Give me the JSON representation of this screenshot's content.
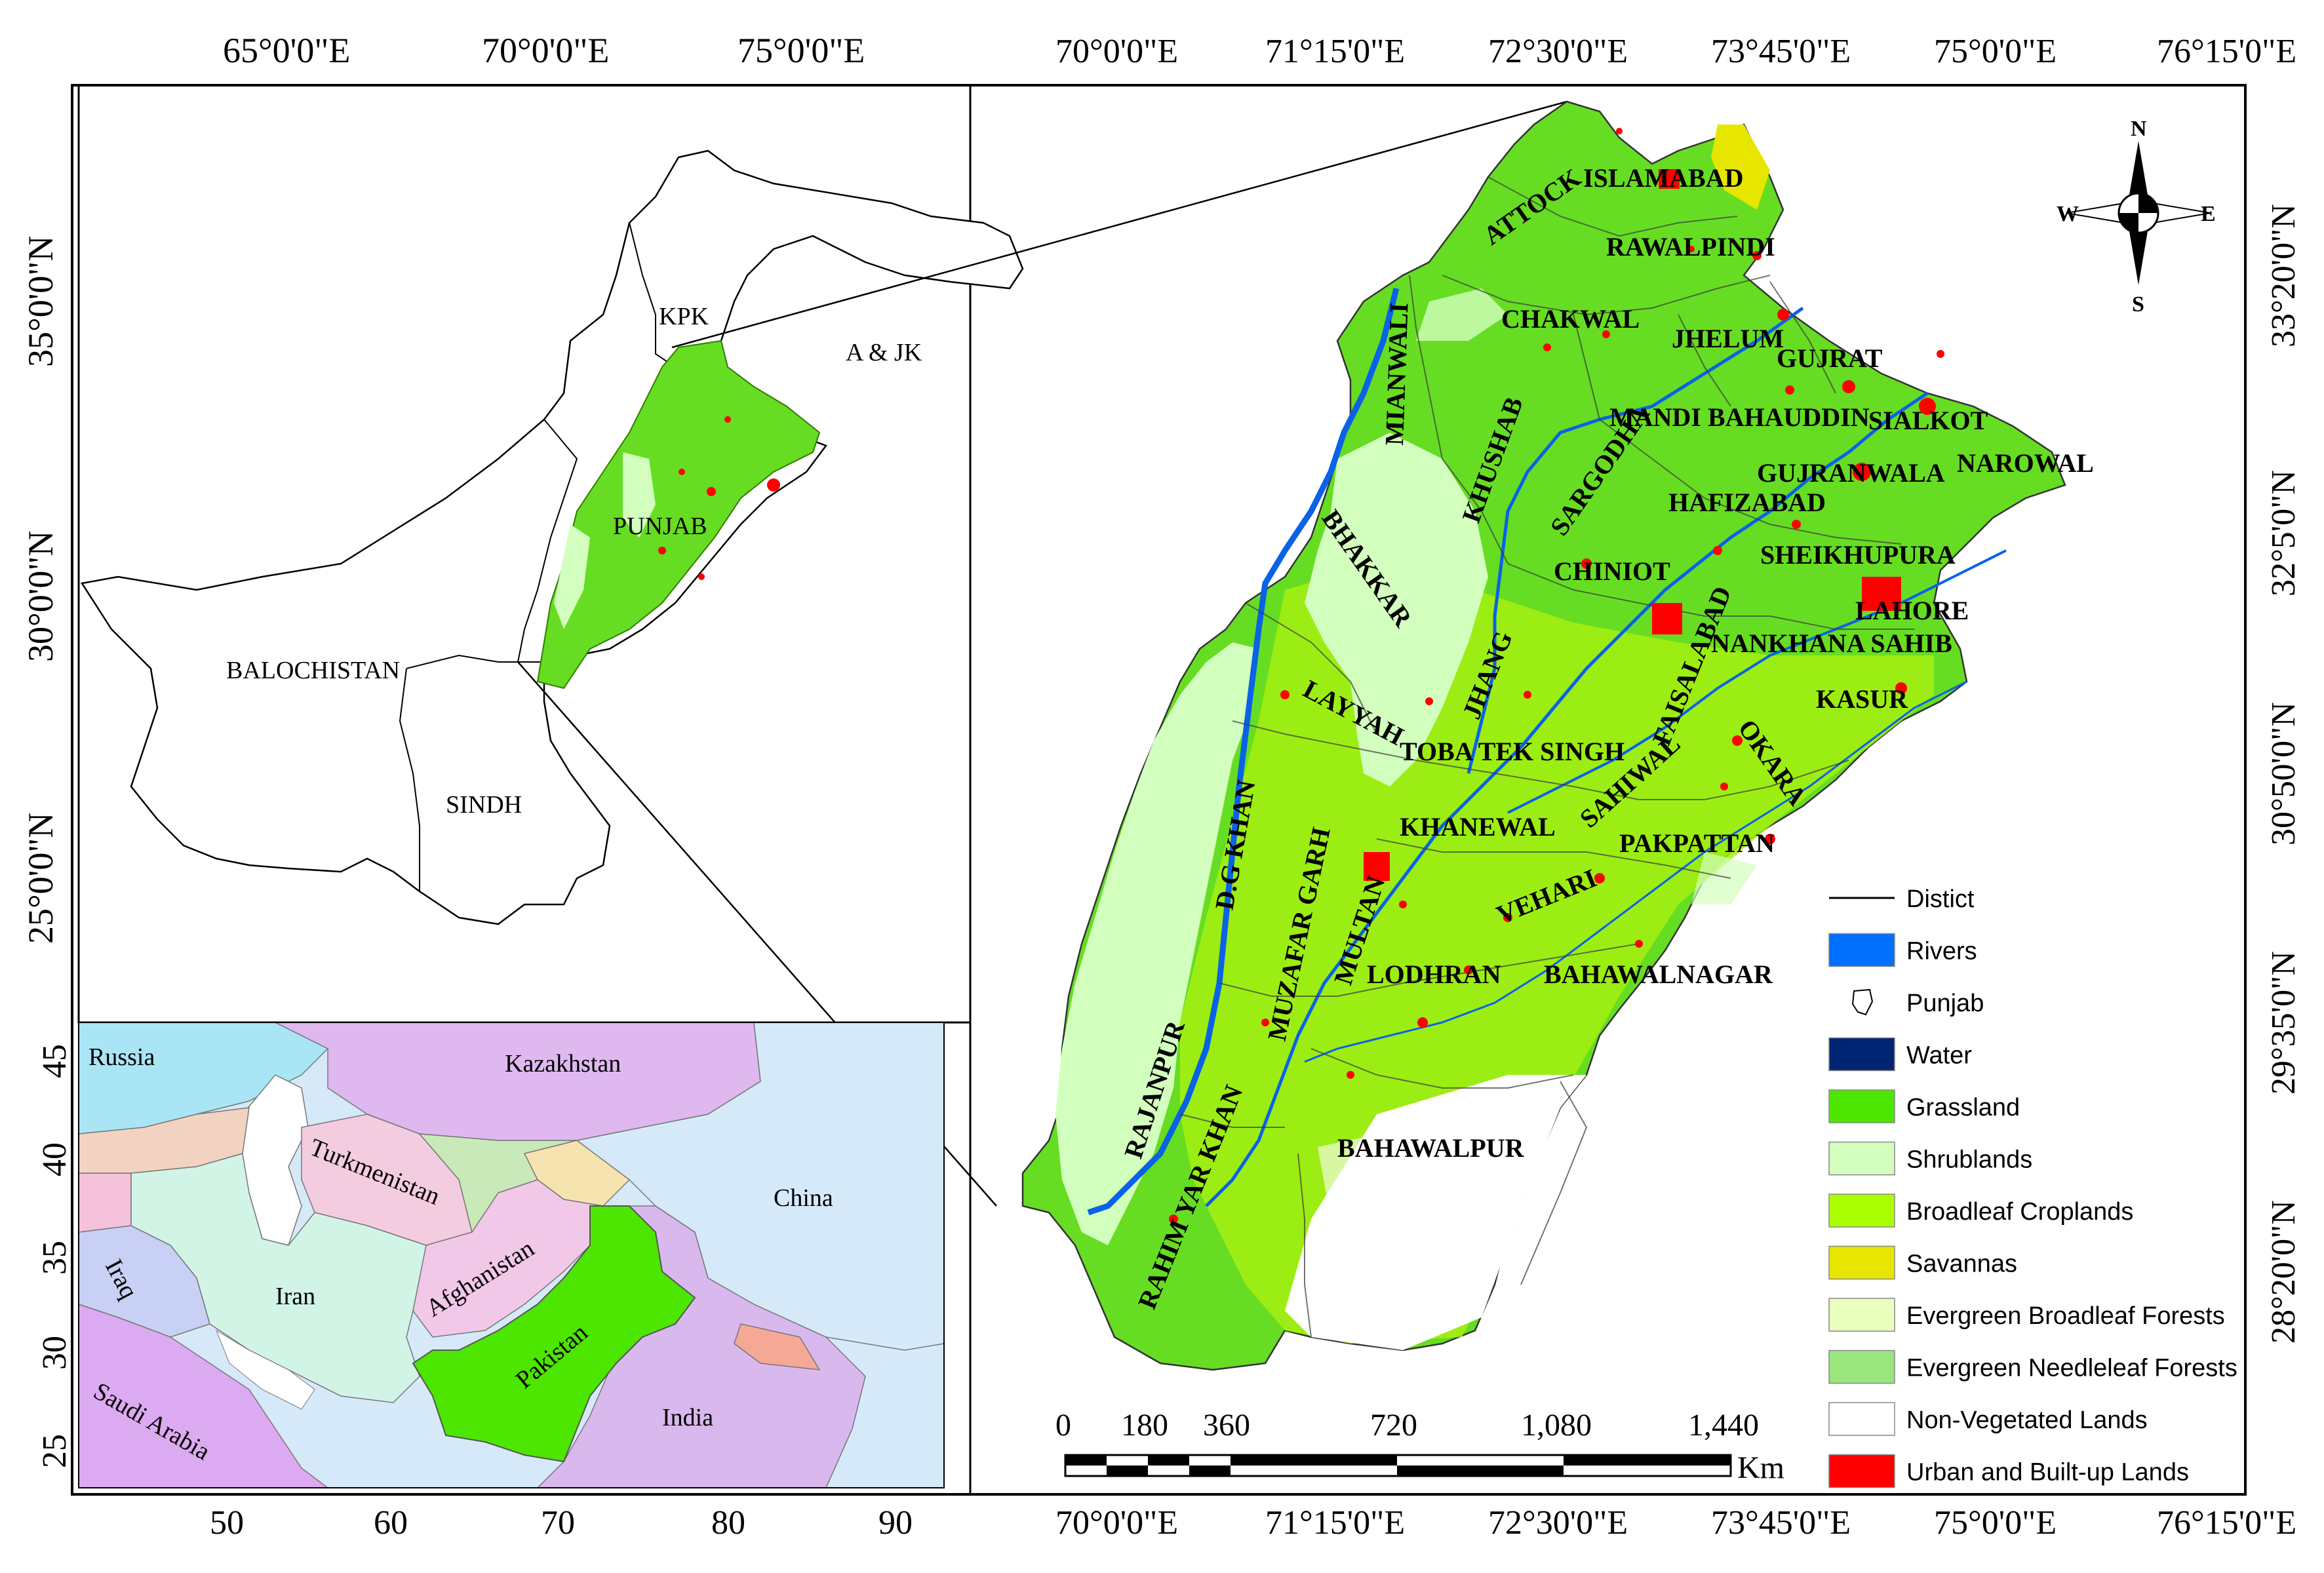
{
  "left_panel": {
    "top_lon_labels": [
      "65°0'0\"E",
      "70°0'0\"E",
      "75°0'0\"E"
    ],
    "lat_labels": [
      "35°0'0\"N",
      "30°0'0\"N",
      "25°0'0\"N"
    ],
    "regions": [
      "KPK",
      "A & JK",
      "PUNJAB",
      "BALOCHISTAN",
      "SINDH"
    ]
  },
  "inset": {
    "y_ticks": [
      "45",
      "40",
      "35",
      "30",
      "25"
    ],
    "x_ticks": [
      "50",
      "60",
      "70",
      "80",
      "90"
    ],
    "countries": [
      "Russia",
      "Kazakhstan",
      "Turkmenistan",
      "China",
      "Afghanistan",
      "Iraq",
      "Iran",
      "Pakistan",
      "India",
      "Saudi Arabia"
    ]
  },
  "right_panel": {
    "lon_labels": [
      "70°0'0\"E",
      "71°15'0\"E",
      "72°30'0\"E",
      "73°45'0\"E",
      "75°0'0\"E",
      "76°15'0\"E"
    ],
    "lat_labels": [
      "33°20'0\"N",
      "32°5'0\"N",
      "30°50'0\"N",
      "29°35'0\"N",
      "28°20'0\"N"
    ],
    "districts": [
      "ISLAMABAD",
      "ATTOCK",
      "RAWALPINDI",
      "CHAKWAL",
      "JHELUM",
      "GUJRAT",
      "MIANWALI",
      "KHUSHAB",
      "MANDI BAHAUDDIN",
      "SIALKOT",
      "GUJRANWALA",
      "NAROWAL",
      "SARGODHA",
      "HAFIZABAD",
      "BHAKKAR",
      "CHINIOT",
      "SHEIKHUPURA",
      "LAHORE",
      "FAISALABAD",
      "NANKHANA SAHIB",
      "JHANG",
      "LAYYAH",
      "KASUR",
      "TOBA TEK SINGH",
      "OKARA",
      "SAHIWAL",
      "D.G KHAN",
      "KHANEWAL",
      "MUZAFAR GARH",
      "PAKPATTAN",
      "MULTAN",
      "VEHARI",
      "LODHRAN",
      "BAHAWALNAGAR",
      "RAJANPUR",
      "RAHIM YAR KHAN",
      "BAHAWALPUR"
    ]
  },
  "compass": {
    "n": "N",
    "s": "S",
    "e": "E",
    "w": "W"
  },
  "scale_bar": {
    "ticks": [
      "0",
      "180",
      "360",
      "720",
      "1,080",
      "1,440"
    ],
    "unit": "Km"
  },
  "legend": {
    "items": [
      {
        "label": "Distict",
        "kind": "line",
        "color": "#000000"
      },
      {
        "label": "Rivers",
        "kind": "fill",
        "color": "#0070ff"
      },
      {
        "label": "Punjab",
        "kind": "outline",
        "color": "#ffffff"
      },
      {
        "label": "Water",
        "kind": "fill",
        "color": "#002673"
      },
      {
        "label": "Grassland",
        "kind": "fill",
        "color": "#4ce600"
      },
      {
        "label": "Shrublands",
        "kind": "fill",
        "color": "#d3ffbe"
      },
      {
        "label": "Broadleaf Croplands",
        "kind": "fill",
        "color": "#aaff00"
      },
      {
        "label": "Savannas",
        "kind": "fill",
        "color": "#e6e600"
      },
      {
        "label": "Evergreen Broadleaf Forests",
        "kind": "fill",
        "color": "#e9ffbe"
      },
      {
        "label": "Evergreen Needleleaf Forests",
        "kind": "fill",
        "color": "#98e67c"
      },
      {
        "label": "Non-Vegetated Lands",
        "kind": "fill",
        "color": "#ffffff"
      },
      {
        "label": "Urban and Built-up Lands",
        "kind": "fill",
        "color": "#ff0000"
      }
    ]
  }
}
